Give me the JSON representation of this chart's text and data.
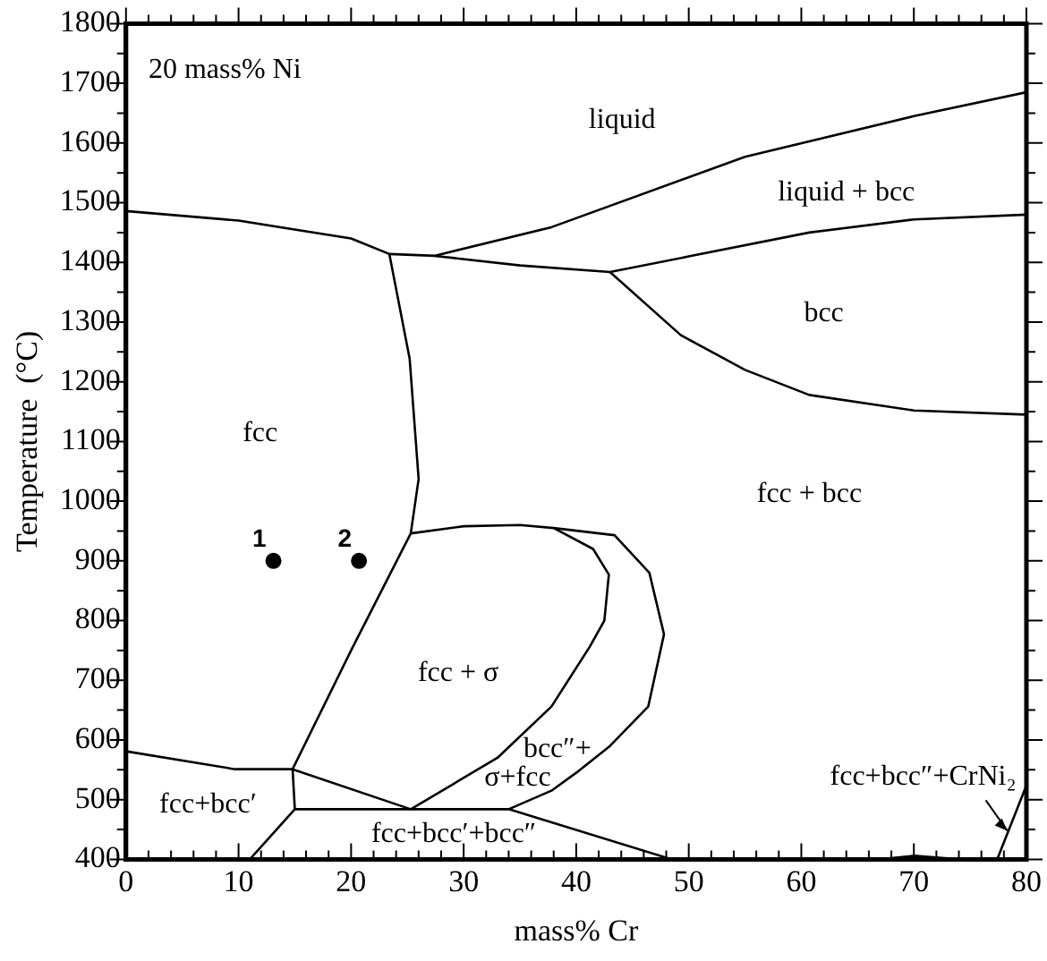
{
  "chart_data": {
    "type": "line",
    "xlabel": "mass% Cr",
    "ylabel": "Temperature  (°C)",
    "xlim": [
      0,
      80
    ],
    "ylim": [
      400,
      1800
    ],
    "xticks": [
      0,
      {
        "value": 2,
        "label": null
      },
      {
        "value": 4,
        "label": null
      },
      {
        "value": 6,
        "label": null
      },
      {
        "value": 8,
        "label": null
      },
      10,
      {
        "value": 12,
        "label": null
      },
      {
        "value": 14,
        "label": null
      },
      {
        "value": 16,
        "label": null
      },
      {
        "value": 18,
        "label": null
      },
      20,
      {
        "value": 22,
        "label": null
      },
      {
        "value": 24,
        "label": null
      },
      {
        "value": 26,
        "label": null
      },
      {
        "value": 28,
        "label": null
      },
      30,
      {
        "value": 32,
        "label": null
      },
      {
        "value": 34,
        "label": null
      },
      {
        "value": 36,
        "label": null
      },
      {
        "value": 38,
        "label": null
      },
      40,
      {
        "value": 42,
        "label": null
      },
      {
        "value": 44,
        "label": null
      },
      {
        "value": 46,
        "label": null
      },
      {
        "value": 48,
        "label": null
      },
      50,
      {
        "value": 52,
        "label": null
      },
      {
        "value": 54,
        "label": null
      },
      {
        "value": 56,
        "label": null
      },
      {
        "value": 58,
        "label": null
      },
      60,
      {
        "value": 62,
        "label": null
      },
      {
        "value": 64,
        "label": null
      },
      {
        "value": 66,
        "label": null
      },
      {
        "value": 68,
        "label": null
      },
      70,
      {
        "value": 72,
        "label": null
      },
      {
        "value": 74,
        "label": null
      },
      {
        "value": 76,
        "label": null
      },
      {
        "value": 78,
        "label": null
      },
      80
    ],
    "yticks": [
      400,
      {
        "value": 450,
        "label": null
      },
      500,
      {
        "value": 550,
        "label": null
      },
      600,
      {
        "value": 650,
        "label": null
      },
      700,
      {
        "value": 750,
        "label": null
      },
      800,
      {
        "value": 850,
        "label": null
      },
      900,
      {
        "value": 950,
        "label": null
      },
      1000,
      {
        "value": 1050,
        "label": null
      },
      1100,
      {
        "value": 1150,
        "label": null
      },
      1200,
      {
        "value": 1250,
        "label": null
      },
      1300,
      {
        "value": 1350,
        "label": null
      },
      1400,
      {
        "value": 1450,
        "label": null
      },
      1500,
      {
        "value": 1550,
        "label": null
      },
      1600,
      {
        "value": 1650,
        "label": null
      },
      1700,
      {
        "value": 1750,
        "label": null
      },
      1800
    ],
    "grid": false,
    "legend": false,
    "series": [
      {
        "type": "line",
        "color": "#000000",
        "marker": "none",
        "x": [
          0,
          10,
          20,
          23.4,
          27.4,
          35,
          43,
          50,
          60.7,
          70,
          80
        ],
        "values": [
          1486,
          1470,
          1440,
          1414,
          1411,
          1395,
          1384,
          1410,
          1450,
          1472,
          1480
        ]
      },
      {
        "type": "line",
        "color": "#000000",
        "marker": "none",
        "x": [
          27.4,
          37.8,
          55,
          70,
          80
        ],
        "values": [
          1411,
          1459,
          1577,
          1645,
          1685
        ]
      },
      {
        "type": "line",
        "color": "#000000",
        "marker": "none",
        "x": [
          43,
          49.3,
          55,
          60.7,
          70,
          80
        ],
        "values": [
          1384,
          1278,
          1220,
          1178,
          1152,
          1145
        ]
      },
      {
        "type": "line",
        "color": "#000000",
        "marker": "none",
        "x": [
          23.4,
          25.2,
          26,
          25.3,
          20,
          14.8
        ],
        "values": [
          1414,
          1239,
          1037,
          946,
          750,
          551
        ]
      },
      {
        "type": "line",
        "color": "#000000",
        "marker": "none",
        "x": [
          25.3,
          30,
          35,
          38,
          41.5,
          42.9,
          42.5,
          41.2,
          37.8,
          33,
          25.3
        ],
        "values": [
          946,
          958,
          960,
          955,
          920,
          877,
          800,
          756,
          656,
          570,
          484
        ]
      },
      {
        "type": "line",
        "color": "#000000",
        "marker": "none",
        "x": [
          38,
          43.4,
          46.5,
          47.8,
          46.4,
          43,
          40,
          37.8,
          34
        ],
        "values": [
          955,
          943,
          880,
          777,
          656,
          590,
          545,
          515,
          484
        ]
      },
      {
        "type": "line",
        "color": "#000000",
        "marker": "none",
        "x": [
          0,
          9.7,
          14.8,
          15,
          11
        ],
        "values": [
          581,
          551,
          551,
          484,
          400
        ]
      },
      {
        "type": "line",
        "color": "#000000",
        "marker": "none",
        "x": [
          14.8,
          25.3
        ],
        "values": [
          551,
          484
        ]
      },
      {
        "type": "line",
        "color": "#000000",
        "marker": "none",
        "x": [
          15,
          34,
          48.5
        ],
        "values": [
          484,
          484,
          400
        ]
      },
      {
        "type": "line",
        "color": "#000000",
        "marker": "none",
        "x": [
          67,
          70,
          74
        ],
        "values": [
          400,
          406,
          400
        ]
      },
      {
        "type": "line",
        "color": "#000000",
        "marker": "none",
        "x": [
          77.4,
          80
        ],
        "values": [
          400,
          524
        ]
      },
      {
        "type": "scatter",
        "name": "1",
        "color": "#000000",
        "marker": "circle",
        "x": [
          13.1
        ],
        "values": [
          900
        ]
      },
      {
        "type": "scatter",
        "name": "2",
        "color": "#000000",
        "marker": "circle",
        "x": [
          20.7
        ],
        "values": [
          900
        ]
      }
    ],
    "annotations": [
      "20 mass% Ni",
      "liquid",
      "liquid + bcc",
      "bcc",
      "fcc",
      "fcc + bcc",
      "fcc + σ",
      "bcc″+",
      "σ+fcc",
      "fcc+bcc′",
      "fcc+bcc′+bcc″",
      {
        "text": "fcc+bcc″+CrNi₂",
        "x": 78.3,
        "y": 448
      }
    ]
  }
}
